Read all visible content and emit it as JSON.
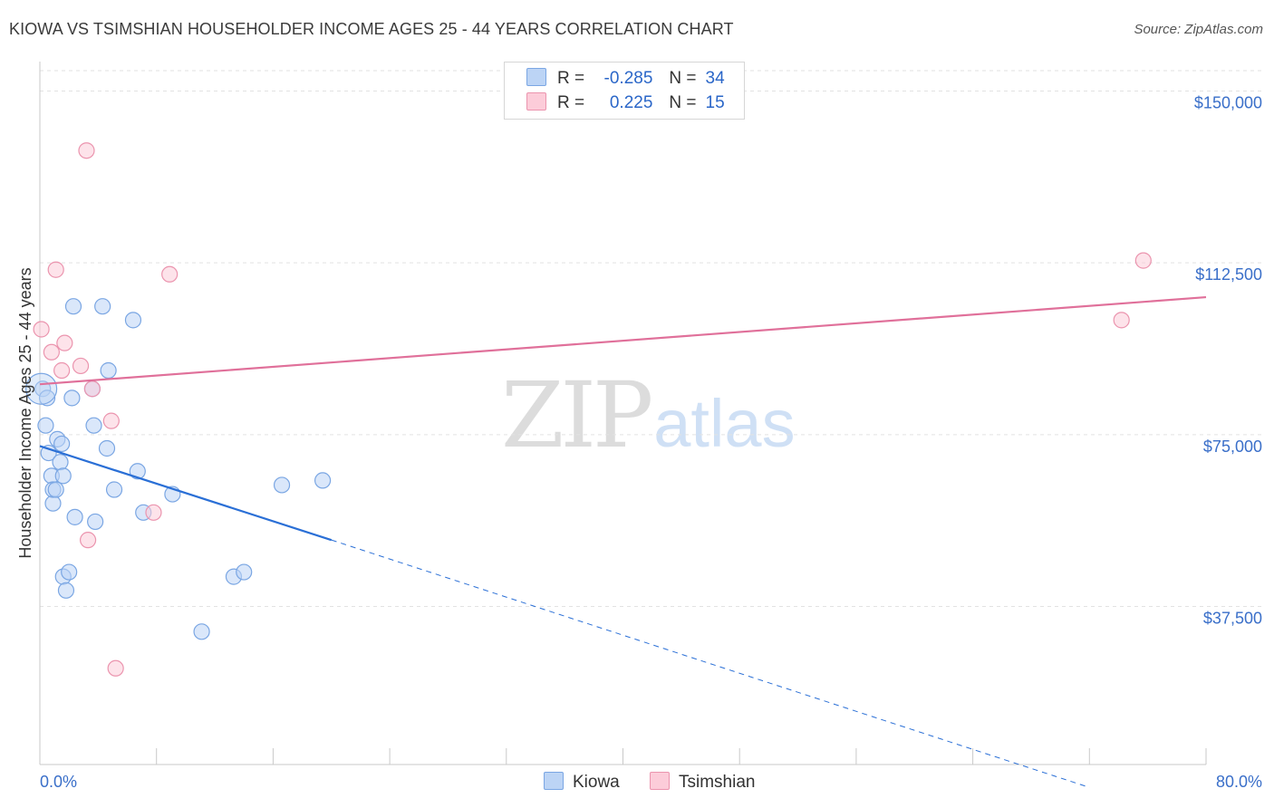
{
  "title": "KIOWA VS TSIMSHIAN HOUSEHOLDER INCOME AGES 25 - 44 YEARS CORRELATION CHART",
  "source": "Source: ZipAtlas.com",
  "watermark": {
    "zip": "ZIP",
    "atlas": "atlas"
  },
  "legend": {
    "r_label": "R =",
    "n_label": "N =",
    "series": [
      {
        "name": "Kiowa",
        "r": "-0.285",
        "n": "34",
        "fill": "#bcd4f5",
        "stroke": "#7aa6e3"
      },
      {
        "name": "Tsimshian",
        "r": "0.225",
        "n": "15",
        "fill": "#fcccd9",
        "stroke": "#eb94ae"
      }
    ]
  },
  "chart_data": {
    "type": "scatter",
    "title": "KIOWA VS TSIMSHIAN HOUSEHOLDER INCOME AGES 25 - 44 YEARS CORRELATION CHART",
    "xlabel": "",
    "ylabel": "Householder Income Ages 25 - 44 years",
    "xlim": [
      0,
      80
    ],
    "ylim": [
      3000,
      158000
    ],
    "x_tick_labels": [
      "0.0%",
      "80.0%"
    ],
    "y_ticks": [
      37500,
      75000,
      112500,
      150000
    ],
    "y_tick_labels": [
      "$37,500",
      "$75,000",
      "$112,500",
      "$150,000"
    ],
    "series": [
      {
        "name": "Kiowa",
        "color": "#2a6fd6",
        "points": [
          [
            0.2,
            85000
          ],
          [
            0.4,
            77000
          ],
          [
            0.5,
            83000
          ],
          [
            0.6,
            71000
          ],
          [
            0.8,
            66000
          ],
          [
            0.9,
            60000
          ],
          [
            0.9,
            63000
          ],
          [
            1.1,
            63000
          ],
          [
            1.2,
            74000
          ],
          [
            1.4,
            69000
          ],
          [
            1.5,
            73000
          ],
          [
            1.6,
            44000
          ],
          [
            1.6,
            66000
          ],
          [
            1.8,
            41000
          ],
          [
            2.0,
            45000
          ],
          [
            2.2,
            83000
          ],
          [
            2.3,
            103000
          ],
          [
            2.4,
            57000
          ],
          [
            3.6,
            85000
          ],
          [
            3.7,
            77000
          ],
          [
            3.8,
            56000
          ],
          [
            4.3,
            103000
          ],
          [
            4.6,
            72000
          ],
          [
            4.7,
            89000
          ],
          [
            5.1,
            63000
          ],
          [
            6.4,
            100000
          ],
          [
            6.7,
            67000
          ],
          [
            7.1,
            58000
          ],
          [
            9.1,
            62000
          ],
          [
            11.1,
            32000
          ],
          [
            13.3,
            44000
          ],
          [
            14.0,
            45000
          ],
          [
            16.6,
            64000
          ],
          [
            19.4,
            65000
          ]
        ],
        "trend": {
          "x0": 0,
          "y0": 72500,
          "x1": 20,
          "y1": 52000,
          "dash_to_x": 72,
          "dash_to_y": -2000
        }
      },
      {
        "name": "Tsimshian",
        "color": "#e0709a",
        "points": [
          [
            0.1,
            98000
          ],
          [
            0.8,
            93000
          ],
          [
            1.1,
            111000
          ],
          [
            1.5,
            89000
          ],
          [
            1.7,
            95000
          ],
          [
            2.8,
            90000
          ],
          [
            3.2,
            137000
          ],
          [
            3.3,
            52000
          ],
          [
            3.6,
            85000
          ],
          [
            4.9,
            78000
          ],
          [
            5.2,
            24000
          ],
          [
            7.8,
            58000
          ],
          [
            8.9,
            110000
          ],
          [
            74.2,
            100000
          ],
          [
            75.7,
            113000
          ]
        ],
        "trend": {
          "x0": 0,
          "y0": 86000,
          "x1": 80,
          "y1": 105000
        }
      }
    ]
  }
}
